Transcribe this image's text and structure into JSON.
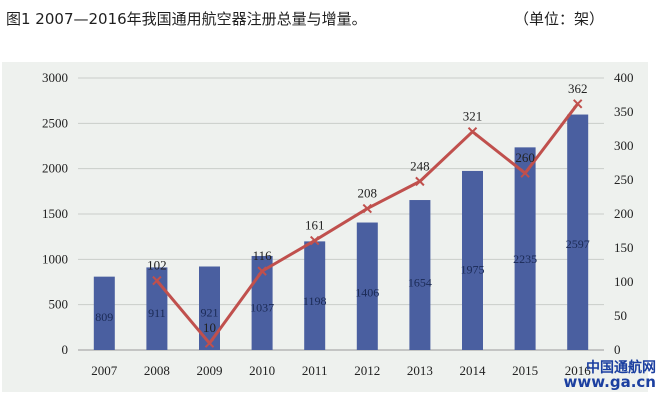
{
  "title": "图1 2007—2016年我国通用航空器注册总量与增量。",
  "unit": "（单位：架）",
  "watermark": {
    "name": "中国通航网",
    "url": "www.ga.cn"
  },
  "chart_data": {
    "type": "bar+line",
    "categories": [
      "2007",
      "2008",
      "2009",
      "2010",
      "2011",
      "2012",
      "2013",
      "2014",
      "2015",
      "2016"
    ],
    "series": [
      {
        "kind": "bar",
        "axis": "left",
        "color": "#4a5fa0",
        "values": [
          809,
          911,
          921,
          1037,
          1198,
          1406,
          1654,
          1975,
          2235,
          2597
        ]
      },
      {
        "kind": "line",
        "axis": "right",
        "color": "#c0504d",
        "values": [
          null,
          102,
          10,
          116,
          161,
          208,
          248,
          321,
          260,
          362
        ]
      }
    ],
    "left_axis": {
      "min": 0,
      "max": 3000,
      "ticks": [
        0,
        500,
        1000,
        1500,
        2000,
        2500,
        3000
      ]
    },
    "right_axis": {
      "min": 0,
      "max": 400,
      "ticks": [
        0,
        50,
        100,
        150,
        200,
        250,
        300,
        350,
        400
      ]
    },
    "grid": true,
    "legend": "none"
  }
}
